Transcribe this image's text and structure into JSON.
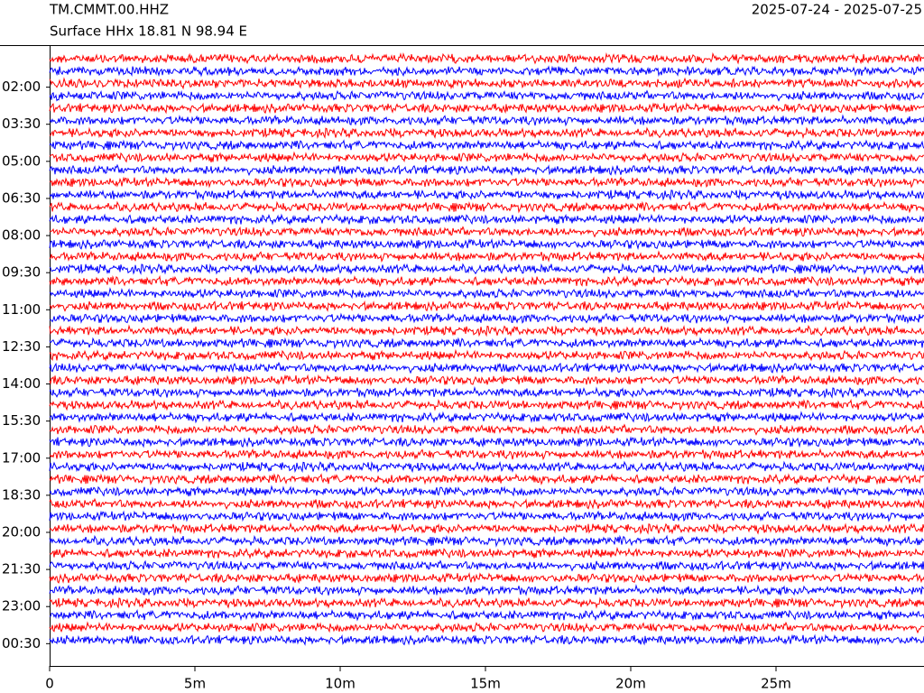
{
  "chart_data": {
    "type": "helicorder",
    "title": "TM.CMMT.00.HHZ",
    "subtitle": "Surface HHx  18.81 N 98.94 E",
    "date_range": "2025-07-24 - 2025-07-25",
    "colors": [
      "#ff0000",
      "#0000ff"
    ],
    "xlim": [
      0,
      30
    ],
    "xticks": [
      0,
      {
        "value": 5,
        "label": "5m"
      },
      {
        "value": 10,
        "label": "10m"
      },
      {
        "value": 15,
        "label": "15m"
      },
      {
        "value": 20,
        "label": "20m"
      },
      {
        "value": 25,
        "label": "25m"
      }
    ],
    "ylim": [
      0.3,
      25.4
    ],
    "yticks": [
      {
        "value": 2,
        "label": "02:00"
      },
      {
        "value": 3.5,
        "label": "03:30"
      },
      {
        "value": 5,
        "label": "05:00"
      },
      {
        "value": 6.5,
        "label": "06:30"
      },
      {
        "value": 8,
        "label": "08:00"
      },
      {
        "value": 9.5,
        "label": "09:30"
      },
      {
        "value": 11,
        "label": "11:00"
      },
      {
        "value": 12.5,
        "label": "12:30"
      },
      {
        "value": 14,
        "label": "14:00"
      },
      {
        "value": 15.5,
        "label": "15:30"
      },
      {
        "value": 17,
        "label": "17:00"
      },
      {
        "value": 18.5,
        "label": "18:30"
      },
      {
        "value": 20,
        "label": "20:00"
      },
      {
        "value": 21.5,
        "label": "21:30"
      },
      {
        "value": 23,
        "label": "23:00"
      },
      {
        "value": 24.5,
        "label": "00:30"
      }
    ]
  }
}
